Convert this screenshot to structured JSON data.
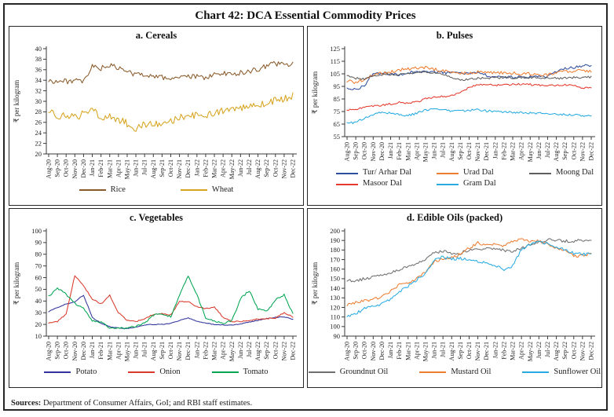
{
  "page": {
    "title": "Chart 42: DCA Essential Commodity Prices",
    "sources_label": "Sources:",
    "sources_text": "Department of Consumer Affairs, GoI; and RBI staff estimates."
  },
  "chart_data": {
    "type": "line",
    "grid": false,
    "legend_position": "bottom",
    "categories": [
      "Aug-20",
      "Sep-20",
      "Oct-20",
      "Nov-20",
      "Dec-20",
      "Jan-21",
      "Feb-21",
      "Mar-21",
      "Apr-21",
      "May-21",
      "Jun-21",
      "Jul-21",
      "Aug-21",
      "Sep-21",
      "Oct-21",
      "Nov-21",
      "Dec-21",
      "Jan-22",
      "Feb-22",
      "Mar-22",
      "Apr-22",
      "May-22",
      "Jun-22",
      "Jul-22",
      "Aug-22",
      "Sep-22",
      "Oct-22",
      "Nov-22",
      "Dec-22"
    ],
    "charts": [
      {
        "panel": "a",
        "title": "a. Cereals",
        "ylabel": "₹ per kilogram",
        "ylim": [
          20,
          40
        ],
        "ystep": 2,
        "series": [
          {
            "name": "Rice",
            "color": "#8A5A2A",
            "jitter": 0.5,
            "values": [
              33.9,
              33.8,
              33.8,
              33.9,
              33.6,
              36.6,
              36.3,
              36.8,
              36.3,
              35.6,
              35.1,
              35.1,
              34.9,
              34.5,
              34.4,
              34.6,
              34.6,
              34.7,
              34.5,
              35.0,
              35.3,
              35.2,
              35.4,
              35.7,
              36.1,
              36.7,
              37.2,
              37.0,
              37.0
            ]
          },
          {
            "name": "Wheat",
            "color": "#D7A41E",
            "jitter": 0.7,
            "values": [
              27.9,
              27.3,
              27.2,
              27.0,
              27.6,
              28.2,
              27.1,
              27.0,
              26.6,
              25.8,
              24.7,
              25.7,
              25.8,
              25.4,
              26.1,
              26.9,
              27.3,
              27.3,
              27.3,
              27.6,
              28.2,
              28.3,
              28.7,
              28.9,
              29.3,
              29.8,
              30.1,
              30.4,
              31.0
            ]
          }
        ]
      },
      {
        "panel": "b",
        "title": "b. Pulses",
        "ylabel": "₹ per kilogram",
        "ylim": [
          55,
          125
        ],
        "ystep": 10,
        "series": [
          {
            "name": "Tur/ Arhar Dal",
            "color": "#2E4E9E",
            "jitter": 1.1,
            "values": [
              93.5,
              92.5,
              95.5,
              105.5,
              105.0,
              105.5,
              104.0,
              106.0,
              106.5,
              107.0,
              106.5,
              106.0,
              105.5,
              105.0,
              105.5,
              106.0,
              104.0,
              102.5,
              102.5,
              102.5,
              102.5,
              102.5,
              102.5,
              102.5,
              106.5,
              109.0,
              110.0,
              111.0,
              112.0
            ]
          },
          {
            "name": "Urad Dal",
            "color": "#ED7D31",
            "jitter": 1.3,
            "values": [
              99.5,
              98.0,
              100.5,
              104.5,
              105.5,
              106.5,
              108.0,
              109.0,
              109.5,
              110.0,
              108.5,
              107.5,
              106.5,
              105.5,
              105.0,
              106.5,
              106.5,
              106.0,
              105.5,
              105.5,
              105.0,
              105.0,
              104.5,
              104.0,
              106.0,
              107.0,
              107.0,
              107.5,
              107.5
            ]
          },
          {
            "name": "Moong Dal",
            "color": "#5F5F5F",
            "jitter": 0.9,
            "values": [
              103.5,
              101.5,
              101.0,
              103.5,
              104.5,
              104.5,
              104.5,
              105.5,
              106.0,
              106.5,
              106.0,
              104.5,
              102.5,
              100.5,
              100.5,
              101.5,
              101.5,
              102.0,
              102.0,
              102.0,
              102.0,
              102.0,
              102.0,
              101.5,
              101.5,
              101.5,
              102.0,
              102.5,
              102.5
            ]
          },
          {
            "name": "Masoor Dal",
            "color": "#E63A2E",
            "jitter": 0.8,
            "values": [
              76.5,
              77.0,
              78.0,
              79.5,
              80.0,
              81.0,
              82.5,
              81.5,
              82.5,
              85.0,
              86.5,
              87.0,
              87.5,
              90.5,
              94.0,
              96.5,
              96.5,
              96.0,
              96.0,
              96.5,
              97.0,
              96.5,
              96.0,
              96.0,
              96.0,
              96.5,
              95.5,
              94.0,
              93.5
            ]
          },
          {
            "name": "Gram Dal",
            "color": "#29ABE2",
            "jitter": 0.9,
            "values": [
              65.5,
              66.5,
              69.5,
              72.5,
              74.5,
              73.5,
              72.5,
              72.0,
              73.5,
              76.5,
              77.0,
              76.5,
              75.5,
              75.5,
              76.0,
              76.5,
              75.5,
              75.0,
              74.5,
              74.5,
              74.0,
              74.0,
              73.5,
              73.0,
              73.0,
              72.5,
              72.0,
              72.0,
              71.5
            ]
          }
        ]
      },
      {
        "panel": "c",
        "title": "c. Vegetables",
        "ylabel": "₹ per kilogram",
        "ylim": [
          10,
          100
        ],
        "ystep": 10,
        "series": [
          {
            "name": "Potato",
            "color": "#32339B",
            "jitter": 0.3,
            "values": [
              31,
              34.5,
              37.5,
              39.5,
              45,
              26,
              21,
              18,
              17,
              16.5,
              17.5,
              19.5,
              20,
              20,
              21,
              23.5,
              25.5,
              22.5,
              21,
              20,
              19.5,
              19.5,
              20.5,
              22,
              23.5,
              25,
              26,
              26.5,
              24.5
            ]
          },
          {
            "name": "Onion",
            "color": "#D93A2B",
            "jitter": 0.5,
            "values": [
              21,
              22.5,
              29,
              62,
              53,
              42,
              37.5,
              45,
              30,
              23.5,
              22.5,
              25,
              28.5,
              29,
              28,
              39.5,
              39.5,
              35,
              33.5,
              35,
              26,
              22.5,
              22.5,
              23.5,
              24.5,
              25,
              25.5,
              30,
              26.5
            ]
          },
          {
            "name": "Tomato",
            "color": "#00A551",
            "jitter": 0.8,
            "values": [
              44,
              51,
              46,
              38,
              34,
              23,
              22,
              17,
              16.5,
              17,
              18.5,
              21,
              28,
              29,
              26.5,
              45,
              62,
              45,
              26,
              23,
              21,
              23,
              42,
              49,
              33,
              31,
              41,
              45.5,
              29
            ]
          }
        ]
      },
      {
        "panel": "d",
        "title": "d. Edible Oils (packed)",
        "ylabel": "₹ per kilogram",
        "ylim": [
          90,
          200
        ],
        "ystep": 10,
        "series": [
          {
            "name": "Groundnut Oil",
            "color": "#6F6F6F",
            "jitter": 1.6,
            "values": [
              149,
              147.5,
              150,
              152,
              153.5,
              156,
              159.5,
              162,
              165.5,
              170,
              177,
              178.5,
              176.5,
              176.5,
              180,
              182,
              181,
              181,
              180,
              178,
              182,
              186,
              189,
              190.5,
              190,
              189.5,
              189.5,
              190,
              190.5
            ]
          },
          {
            "name": "Mustard Oil",
            "color": "#ED7D31",
            "jitter": 1.4,
            "values": [
              123,
              125,
              127,
              128.5,
              131,
              137,
              143.5,
              145.5,
              150,
              157,
              168,
              170.5,
              172,
              175.5,
              182,
              187.5,
              185,
              186,
              184.5,
              189,
              191.5,
              189.5,
              189.5,
              185.5,
              182,
              179.5,
              173.5,
              174.5,
              176
            ]
          },
          {
            "name": "Sunflower Oil",
            "color": "#29ABE2",
            "jitter": 1.6,
            "values": [
              111.5,
              113,
              119.5,
              121.5,
              124,
              129,
              136.5,
              142.5,
              149,
              156,
              170,
              172.5,
              170.5,
              171,
              170.5,
              168,
              166,
              162.5,
              160,
              163,
              181,
              185.5,
              189,
              186.5,
              183,
              180.5,
              176.5,
              175.5,
              176.5
            ]
          }
        ]
      }
    ]
  }
}
